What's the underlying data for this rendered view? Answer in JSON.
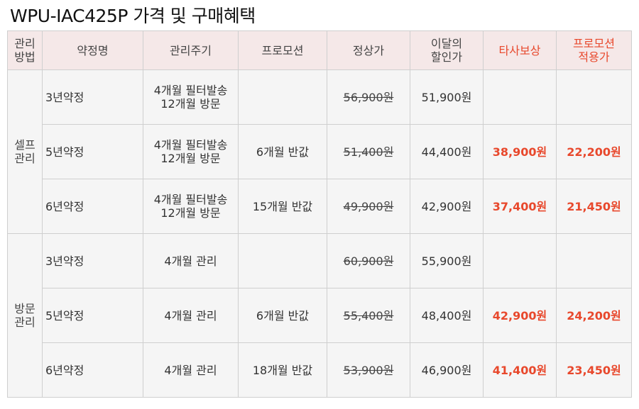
{
  "title": "WPU-IAC425P 가격 및 구매혜택",
  "headers": {
    "method": [
      "관리",
      "방법"
    ],
    "plan": "약정명",
    "cycle": "관리주기",
    "promo": "프로모션",
    "regular": "정상가",
    "discount": [
      "이달의",
      "할인가"
    ],
    "trade_in": "타사보상",
    "promo_price": [
      "프로모션",
      "적용가"
    ]
  },
  "groups": [
    {
      "method": [
        "셀프",
        "관리"
      ],
      "rows": [
        {
          "plan": "3년약정",
          "cycle": [
            "4개월 필터발송",
            "12개월 방문"
          ],
          "promo": "",
          "regular": "56,900원",
          "discount": "51,900원",
          "trade_in": "",
          "promo_price": ""
        },
        {
          "plan": "5년약정",
          "cycle": [
            "4개월 필터발송",
            "12개월 방문"
          ],
          "promo": "6개월 반값",
          "regular": "51,400원",
          "discount": "44,400원",
          "trade_in": "38,900원",
          "promo_price": "22,200원"
        },
        {
          "plan": "6년약정",
          "cycle": [
            "4개월 필터발송",
            "12개월 방문"
          ],
          "promo": "15개월 반값",
          "regular": "49,900원",
          "discount": "42,900원",
          "trade_in": "37,400원",
          "promo_price": "21,450원"
        }
      ]
    },
    {
      "method": [
        "방문",
        "관리"
      ],
      "rows": [
        {
          "plan": "3년약정",
          "cycle": [
            "4개월 관리",
            ""
          ],
          "promo": "",
          "regular": "60,900원",
          "discount": "55,900원",
          "trade_in": "",
          "promo_price": ""
        },
        {
          "plan": "5년약정",
          "cycle": [
            "4개월 관리",
            ""
          ],
          "promo": "6개월 반값",
          "regular": "55,400원",
          "discount": "48,400원",
          "trade_in": "42,900원",
          "promo_price": "24,200원"
        },
        {
          "plan": "6년약정",
          "cycle": [
            "4개월 관리",
            ""
          ],
          "promo": "18개월 반값",
          "regular": "53,900원",
          "discount": "46,900원",
          "trade_in": "41,400원",
          "promo_price": "23,450원"
        }
      ]
    }
  ]
}
